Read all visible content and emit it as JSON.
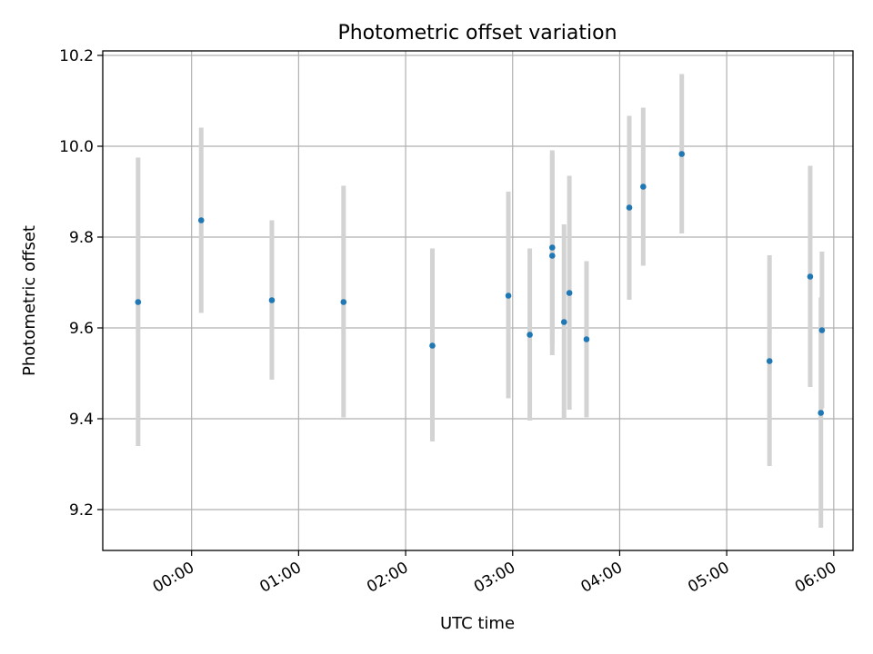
{
  "chart_data": {
    "type": "scatter",
    "title": "Photometric offset variation",
    "xlabel": "UTC time",
    "ylabel": "Photometric offset",
    "x_unit": "hours_utc",
    "xlim": [
      -0.83,
      6.18
    ],
    "ylim": [
      9.11,
      10.21
    ],
    "grid": true,
    "x_ticks": [
      {
        "value": 0,
        "label": "00:00"
      },
      {
        "value": 1,
        "label": "01:00"
      },
      {
        "value": 2,
        "label": "02:00"
      },
      {
        "value": 3,
        "label": "03:00"
      },
      {
        "value": 4,
        "label": "04:00"
      },
      {
        "value": 5,
        "label": "05:00"
      },
      {
        "value": 6,
        "label": "06:00"
      }
    ],
    "y_ticks": [
      {
        "value": 9.2,
        "label": "9.2"
      },
      {
        "value": 9.4,
        "label": "9.4"
      },
      {
        "value": 9.6,
        "label": "9.6"
      },
      {
        "value": 9.8,
        "label": "9.8"
      },
      {
        "value": 10.0,
        "label": "10.0"
      },
      {
        "value": 10.2,
        "label": "10.2"
      }
    ],
    "marker_color": "#1f77b4",
    "errorbar_color": "#d3d3d3",
    "points": [
      {
        "x": -0.5,
        "y": 9.657,
        "ylow": 9.34,
        "yhigh": 9.975
      },
      {
        "x": 0.09,
        "y": 9.837,
        "ylow": 9.633,
        "yhigh": 10.041
      },
      {
        "x": 0.75,
        "y": 9.661,
        "ylow": 9.486,
        "yhigh": 9.837
      },
      {
        "x": 1.42,
        "y": 9.657,
        "ylow": 9.403,
        "yhigh": 9.913
      },
      {
        "x": 2.25,
        "y": 9.561,
        "ylow": 9.35,
        "yhigh": 9.775
      },
      {
        "x": 2.96,
        "y": 9.671,
        "ylow": 9.445,
        "yhigh": 9.9
      },
      {
        "x": 3.16,
        "y": 9.585,
        "ylow": 9.396,
        "yhigh": 9.775
      },
      {
        "x": 3.37,
        "y": 9.777,
        "ylow": 9.563,
        "yhigh": 9.991
      },
      {
        "x": 3.37,
        "y": 9.759,
        "ylow": 9.54,
        "yhigh": 9.982
      },
      {
        "x": 3.48,
        "y": 9.613,
        "ylow": 9.4,
        "yhigh": 9.828
      },
      {
        "x": 3.53,
        "y": 9.677,
        "ylow": 9.42,
        "yhigh": 9.935
      },
      {
        "x": 3.69,
        "y": 9.575,
        "ylow": 9.403,
        "yhigh": 9.747
      },
      {
        "x": 4.09,
        "y": 9.865,
        "ylow": 9.662,
        "yhigh": 10.067
      },
      {
        "x": 4.22,
        "y": 9.911,
        "ylow": 9.737,
        "yhigh": 10.085
      },
      {
        "x": 4.58,
        "y": 9.983,
        "ylow": 9.808,
        "yhigh": 10.159
      },
      {
        "x": 5.4,
        "y": 9.527,
        "ylow": 9.296,
        "yhigh": 9.76
      },
      {
        "x": 5.78,
        "y": 9.713,
        "ylow": 9.47,
        "yhigh": 9.957
      },
      {
        "x": 5.88,
        "y": 9.413,
        "ylow": 9.16,
        "yhigh": 9.667
      },
      {
        "x": 5.89,
        "y": 9.595,
        "ylow": 9.423,
        "yhigh": 9.768
      }
    ]
  }
}
